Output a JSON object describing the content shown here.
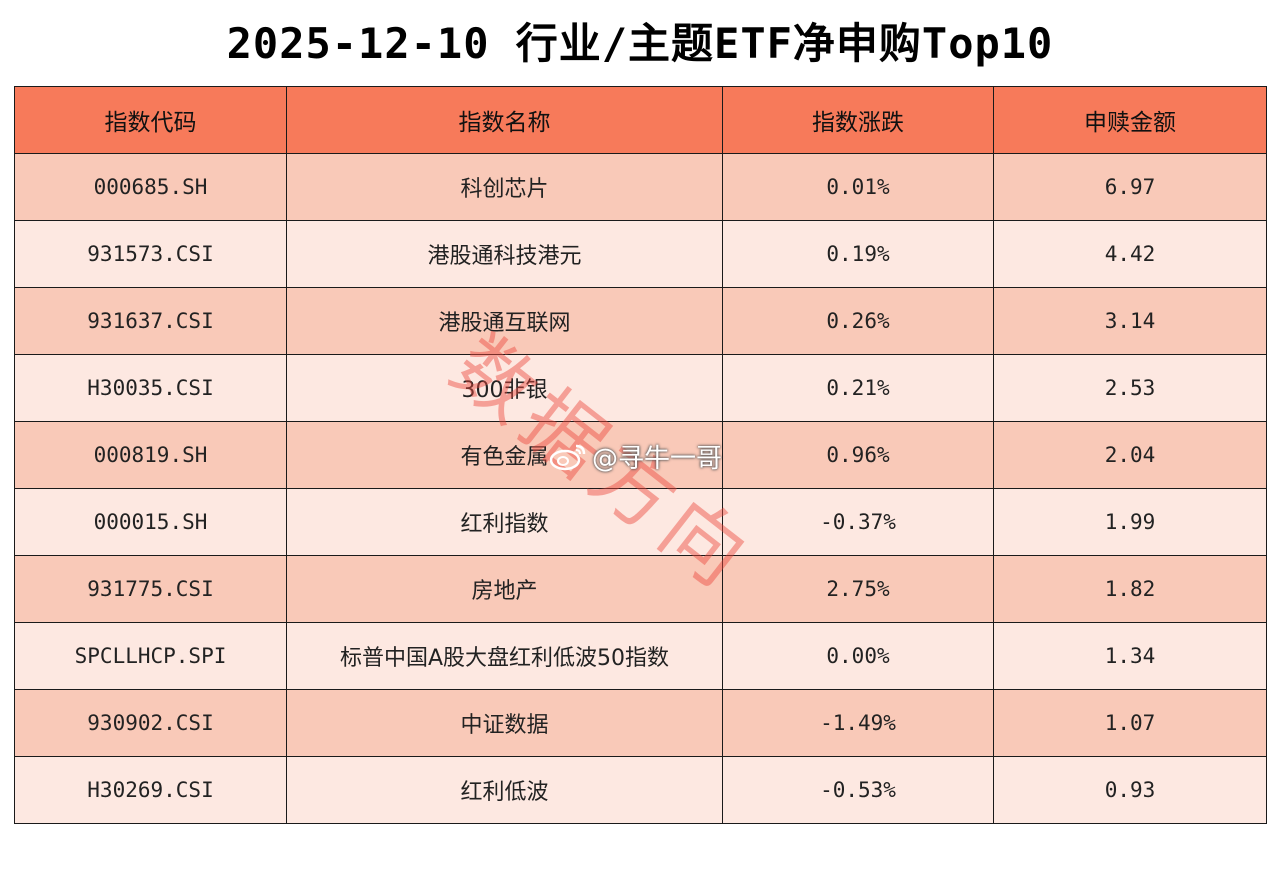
{
  "title": "2025-12-10 行业/主题ETF净申购Top10",
  "headers": [
    "指数代码",
    "指数名称",
    "指数涨跌",
    "申赎金额"
  ],
  "rows": [
    {
      "code": "000685.SH",
      "name": "科创芯片",
      "change": "0.01%",
      "amount": "6.97"
    },
    {
      "code": "931573.CSI",
      "name": "港股通科技港元",
      "change": "0.19%",
      "amount": "4.42"
    },
    {
      "code": "931637.CSI",
      "name": "港股通互联网",
      "change": "0.26%",
      "amount": "3.14"
    },
    {
      "code": "H30035.CSI",
      "name": "300非银",
      "change": "0.21%",
      "amount": "2.53"
    },
    {
      "code": "000819.SH",
      "name": "有色金属",
      "change": "0.96%",
      "amount": "2.04"
    },
    {
      "code": "000015.SH",
      "name": "红利指数",
      "change": "-0.37%",
      "amount": "1.99"
    },
    {
      "code": "931775.CSI",
      "name": "房地产",
      "change": "2.75%",
      "amount": "1.82"
    },
    {
      "code": "SPCLLHCP.SPI",
      "name": "标普中国A股大盘红利低波50指数",
      "change": "0.00%",
      "amount": "1.34"
    },
    {
      "code": "930902.CSI",
      "name": "中证数据",
      "change": "-1.49%",
      "amount": "1.07"
    },
    {
      "code": "H30269.CSI",
      "name": "红利低波",
      "change": "-0.53%",
      "amount": "0.93"
    }
  ],
  "watermark": "数据方向",
  "weibo_handle": "@寻牛一哥",
  "colors": {
    "header": "#f77a5a",
    "row_odd": "#f9c9b8",
    "row_even": "#fde8e1",
    "watermark": "#eb463c"
  }
}
